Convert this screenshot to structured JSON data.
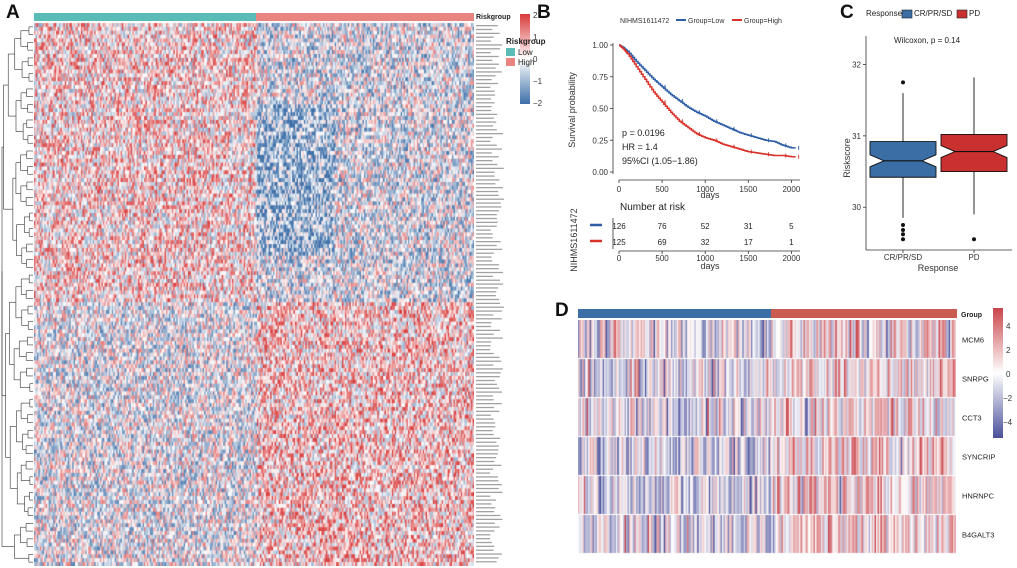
{
  "panels": {
    "a": {
      "letter": "A",
      "legend_title": "Riskgroup",
      "legend_low": "Low",
      "legend_high": "High",
      "colorbar_ticks": [
        "2",
        "1",
        "0",
        "−1",
        "−2"
      ],
      "row_labels_note": "small gene labels (illegible)"
    },
    "b": {
      "letter": "B",
      "title": "NIHMS1611472",
      "legend_low": "Group=Low",
      "legend_high": "Group=High",
      "ylabel": "Survival probability",
      "xlabel": "days",
      "p_text": "p = 0.0196",
      "hr_text": "HR = 1.4",
      "ci_text": "95%CI (1.05−1.86)",
      "risk_title": "Number at risk",
      "risk_ylabel": "NIHMS1611472",
      "risk_xlabel": "days",
      "risk_low": [
        "126",
        "76",
        "52",
        "31",
        "5"
      ],
      "risk_high": [
        "125",
        "69",
        "32",
        "17",
        "1"
      ]
    },
    "c": {
      "letter": "C",
      "legend_title": "Response",
      "legend_a": "CR/PR/SD",
      "legend_b": "PD",
      "stat_text": "Wilcoxon, p = 0.14",
      "ylabel": "Riskscore",
      "xlabel": "Response"
    },
    "d": {
      "letter": "D",
      "group_label": "Group",
      "colorbar_ticks": [
        "4",
        "2",
        "0",
        "−2",
        "−4"
      ]
    }
  },
  "colors": {
    "low": "#5bbcb7",
    "high": "#e98580",
    "heat_red": "#d93a3a",
    "heat_blue": "#3d6fa8",
    "km_low": "#2e5ea6",
    "km_high": "#d9322b",
    "box_a": "#3a6ea5",
    "box_b": "#c93131",
    "d_bar_low": "#3a6ea5",
    "d_bar_high": "#c95b50"
  },
  "chart_data": [
    {
      "type": "heatmap",
      "panel": "A",
      "groups": [
        "Low",
        "High"
      ],
      "legend_title": "Riskgroup",
      "color_range": [
        -2,
        2
      ],
      "rows_approx": 140,
      "cols_approx": 300
    },
    {
      "type": "line",
      "panel": "B",
      "title": "NIHMS1611472",
      "xlabel": "days",
      "ylabel": "Survival probability",
      "xlim": [
        0,
        2100
      ],
      "ylim": [
        0,
        1
      ],
      "xticks": [
        0,
        500,
        1000,
        1500,
        2000
      ],
      "yticks": [
        0.0,
        0.25,
        0.5,
        0.75,
        1.0
      ],
      "series": [
        {
          "name": "Group=Low",
          "x": [
            0,
            50,
            100,
            200,
            300,
            400,
            500,
            600,
            700,
            800,
            900,
            1000,
            1100,
            1200,
            1300,
            1400,
            1500,
            1600,
            1700,
            1800,
            1900,
            2000,
            2050
          ],
          "y": [
            1.0,
            0.98,
            0.95,
            0.87,
            0.8,
            0.73,
            0.67,
            0.61,
            0.56,
            0.51,
            0.47,
            0.44,
            0.4,
            0.37,
            0.34,
            0.31,
            0.29,
            0.27,
            0.25,
            0.24,
            0.21,
            0.19,
            0.19
          ]
        },
        {
          "name": "Group=High",
          "x": [
            0,
            50,
            100,
            200,
            300,
            400,
            500,
            600,
            700,
            800,
            900,
            1000,
            1100,
            1200,
            1300,
            1400,
            1500,
            1600,
            1700,
            1800,
            1900,
            2000,
            2050
          ],
          "y": [
            1.0,
            0.97,
            0.93,
            0.83,
            0.73,
            0.63,
            0.55,
            0.47,
            0.4,
            0.35,
            0.3,
            0.27,
            0.25,
            0.22,
            0.2,
            0.18,
            0.16,
            0.15,
            0.14,
            0.13,
            0.13,
            0.12,
            0.12
          ]
        }
      ],
      "annotations": [
        "p = 0.0196",
        "HR = 1.4",
        "95%CI (1.05−1.86)"
      ],
      "risk_table": {
        "times": [
          0,
          500,
          1000,
          1500,
          2000
        ],
        "Low": [
          126,
          76,
          52,
          31,
          5
        ],
        "High": [
          125,
          69,
          32,
          17,
          1
        ]
      }
    },
    {
      "type": "box",
      "panel": "C",
      "xlabel": "Response",
      "ylabel": "Riskscore",
      "ylim": [
        29.4,
        32.4
      ],
      "yticks": [
        30,
        31,
        32
      ],
      "categories": [
        "CR/PR/SD",
        "PD"
      ],
      "boxes": [
        {
          "name": "CR/PR/SD",
          "min": 29.85,
          "q1": 30.42,
          "median": 30.65,
          "q3": 30.92,
          "max": 31.6,
          "outliers": [
            31.75,
            29.75,
            29.68,
            29.62,
            29.55
          ]
        },
        {
          "name": "PD",
          "min": 29.9,
          "q1": 30.5,
          "median": 30.78,
          "q3": 31.02,
          "max": 31.82,
          "outliers": [
            29.55
          ]
        }
      ],
      "stat": "Wilcoxon, p = 0.14"
    },
    {
      "type": "heatmap",
      "panel": "D",
      "rows": [
        "MCM6",
        "SNRPG",
        "CCT3",
        "SYNCRIP",
        "HNRNPC",
        "B4GALT3"
      ],
      "color_range": [
        -5,
        5
      ],
      "cols_approx": 260,
      "group_label": "Group"
    }
  ]
}
